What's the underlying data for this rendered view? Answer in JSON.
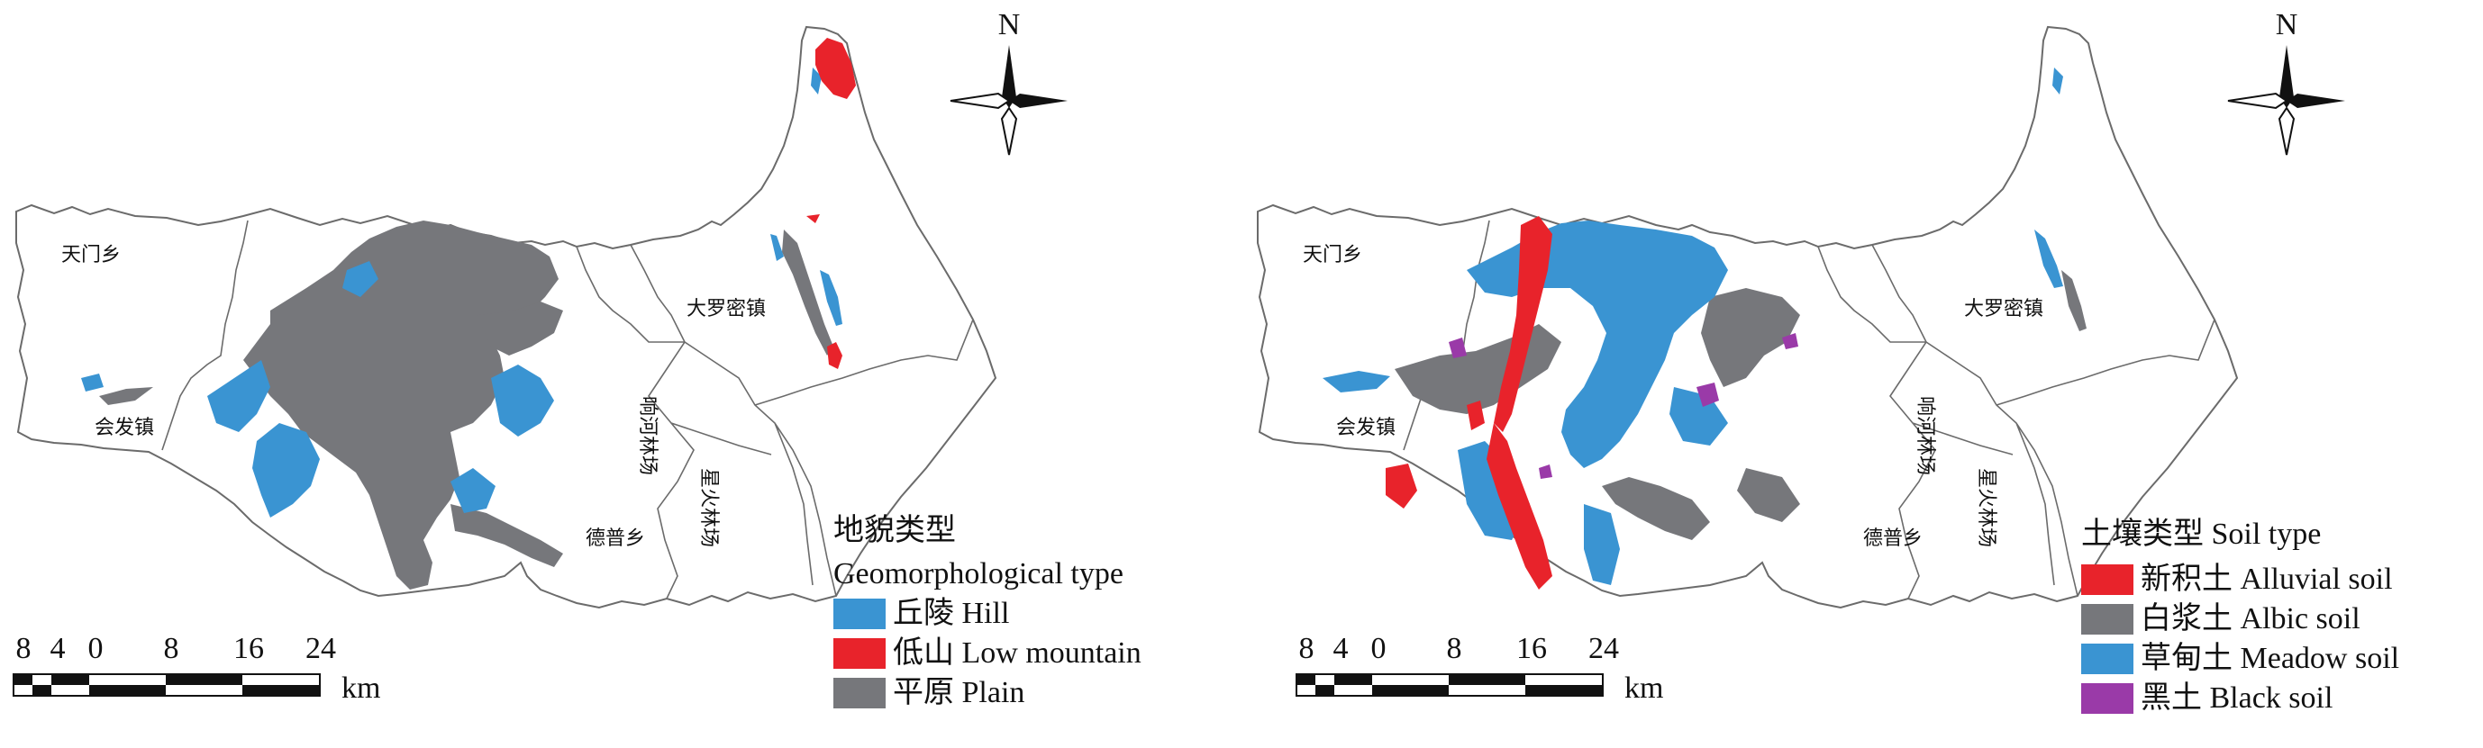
{
  "left": {
    "north_label": "N",
    "towns": {
      "tianmen": "天门乡",
      "huifa": "会发镇",
      "daluomi": "大罗密镇",
      "xiangshe": "响河林场",
      "xinghuo": "星火林场",
      "depu": "德普乡"
    },
    "legend": {
      "title": "地貌类型",
      "subtitle": "Geomorphological type",
      "items": [
        {
          "label": "丘陵 Hill",
          "color": "#3a94d2"
        },
        {
          "label": "低山 Low mountain",
          "color": "#e8232b"
        },
        {
          "label": "平原 Plain",
          "color": "#76777b"
        }
      ]
    },
    "scale": {
      "ticks": [
        "8",
        "4",
        "0",
        "8",
        "16",
        "24"
      ],
      "unit": "km"
    }
  },
  "right": {
    "north_label": "N",
    "towns": {
      "tianmen": "天门乡",
      "huifa": "会发镇",
      "daluomi": "大罗密镇",
      "xiangshe": "响河林场",
      "xinghuo": "星火林场",
      "depu": "德普乡"
    },
    "legend": {
      "title": "土壤类型 Soil type",
      "items": [
        {
          "label": "新积土 Alluvial soil",
          "color": "#e8232b"
        },
        {
          "label": "白浆土 Albic soil",
          "color": "#76777b"
        },
        {
          "label": "草甸土 Meadow soil",
          "color": "#3a94d2"
        },
        {
          "label": "黑土 Black soil",
          "color": "#9a3aa8"
        }
      ]
    },
    "scale": {
      "ticks": [
        "8",
        "4",
        "0",
        "8",
        "16",
        "24"
      ],
      "unit": "km"
    }
  }
}
